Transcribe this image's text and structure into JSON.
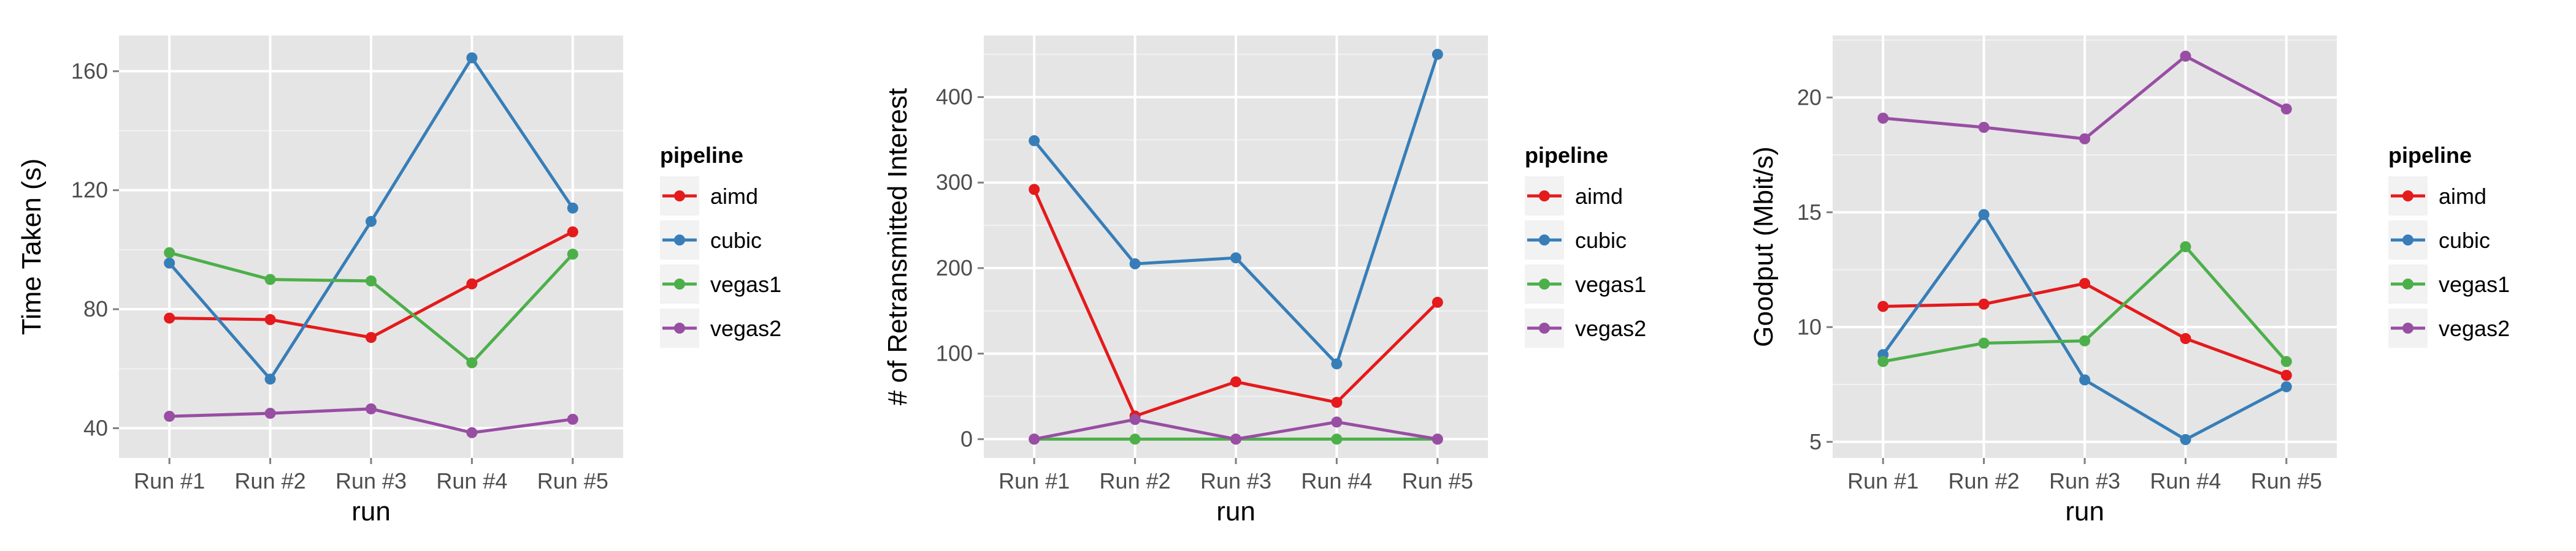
{
  "chart_data": [
    {
      "type": "line",
      "categories": [
        "Run #1",
        "Run #2",
        "Run #3",
        "Run #4",
        "Run #5"
      ],
      "xlabel": "run",
      "ylabel": "Time Taken (s)",
      "ylim": [
        30,
        172
      ],
      "yticks": [
        40,
        80,
        120,
        160
      ],
      "legend_title": "pipeline",
      "legend_position": "right",
      "grid": true,
      "series": [
        {
          "name": "aimd",
          "color": "#E41A1C",
          "values": [
            77,
            76.5,
            70.5,
            88.5,
            106
          ]
        },
        {
          "name": "cubic",
          "color": "#377EB8",
          "values": [
            95.5,
            56.5,
            109.5,
            164.5,
            114
          ]
        },
        {
          "name": "vegas1",
          "color": "#4DAF4A",
          "values": [
            99,
            90,
            89.5,
            62,
            98.5
          ]
        },
        {
          "name": "vegas2",
          "color": "#984EA3",
          "values": [
            44,
            45,
            46.5,
            38.5,
            43
          ]
        }
      ]
    },
    {
      "type": "line",
      "categories": [
        "Run #1",
        "Run #2",
        "Run #3",
        "Run #4",
        "Run #5"
      ],
      "xlabel": "run",
      "ylabel": "# of Retransmitted Interest",
      "ylim": [
        -22,
        472
      ],
      "yticks": [
        0,
        100,
        200,
        300,
        400
      ],
      "legend_title": "pipeline",
      "legend_position": "right",
      "grid": true,
      "series": [
        {
          "name": "aimd",
          "color": "#E41A1C",
          "values": [
            292,
            27,
            67,
            43,
            160
          ]
        },
        {
          "name": "cubic",
          "color": "#377EB8",
          "values": [
            349,
            205,
            212,
            88,
            450
          ]
        },
        {
          "name": "vegas1",
          "color": "#4DAF4A",
          "values": [
            0,
            0,
            0,
            0,
            0
          ]
        },
        {
          "name": "vegas2",
          "color": "#984EA3",
          "values": [
            0,
            23,
            0,
            20,
            0
          ]
        }
      ]
    },
    {
      "type": "line",
      "categories": [
        "Run #1",
        "Run #2",
        "Run #3",
        "Run #4",
        "Run #5"
      ],
      "xlabel": "run",
      "ylabel": "Goodput (Mbit/s)",
      "ylim": [
        4.3,
        22.7
      ],
      "yticks": [
        5,
        10,
        15,
        20
      ],
      "legend_title": "pipeline",
      "legend_position": "right",
      "grid": true,
      "series": [
        {
          "name": "aimd",
          "color": "#E41A1C",
          "values": [
            10.9,
            11.0,
            11.9,
            9.5,
            7.9
          ]
        },
        {
          "name": "cubic",
          "color": "#377EB8",
          "values": [
            8.8,
            14.9,
            7.7,
            5.1,
            7.4
          ]
        },
        {
          "name": "vegas1",
          "color": "#4DAF4A",
          "values": [
            8.5,
            9.3,
            9.4,
            13.5,
            8.5
          ]
        },
        {
          "name": "vegas2",
          "color": "#984EA3",
          "values": [
            19.1,
            18.7,
            18.2,
            21.8,
            19.5
          ]
        }
      ]
    }
  ]
}
